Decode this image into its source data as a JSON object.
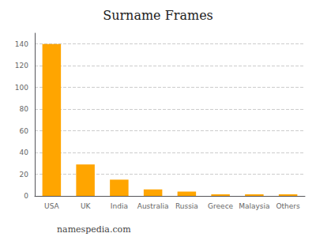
{
  "chart_data": {
    "type": "bar",
    "title": "Surname Frames",
    "categories": [
      "USA",
      "UK",
      "India",
      "Australia",
      "Russia",
      "Greece",
      "Malaysia",
      "Others"
    ],
    "values": [
      140,
      29,
      15,
      6,
      4,
      1.5,
      1.5,
      1.5
    ],
    "color": "#FFA500",
    "ylim": [
      0,
      150
    ],
    "yticks": [
      0,
      20,
      40,
      60,
      80,
      100,
      120,
      140
    ],
    "grid": true,
    "annotations": [
      "namespedia.com"
    ]
  }
}
